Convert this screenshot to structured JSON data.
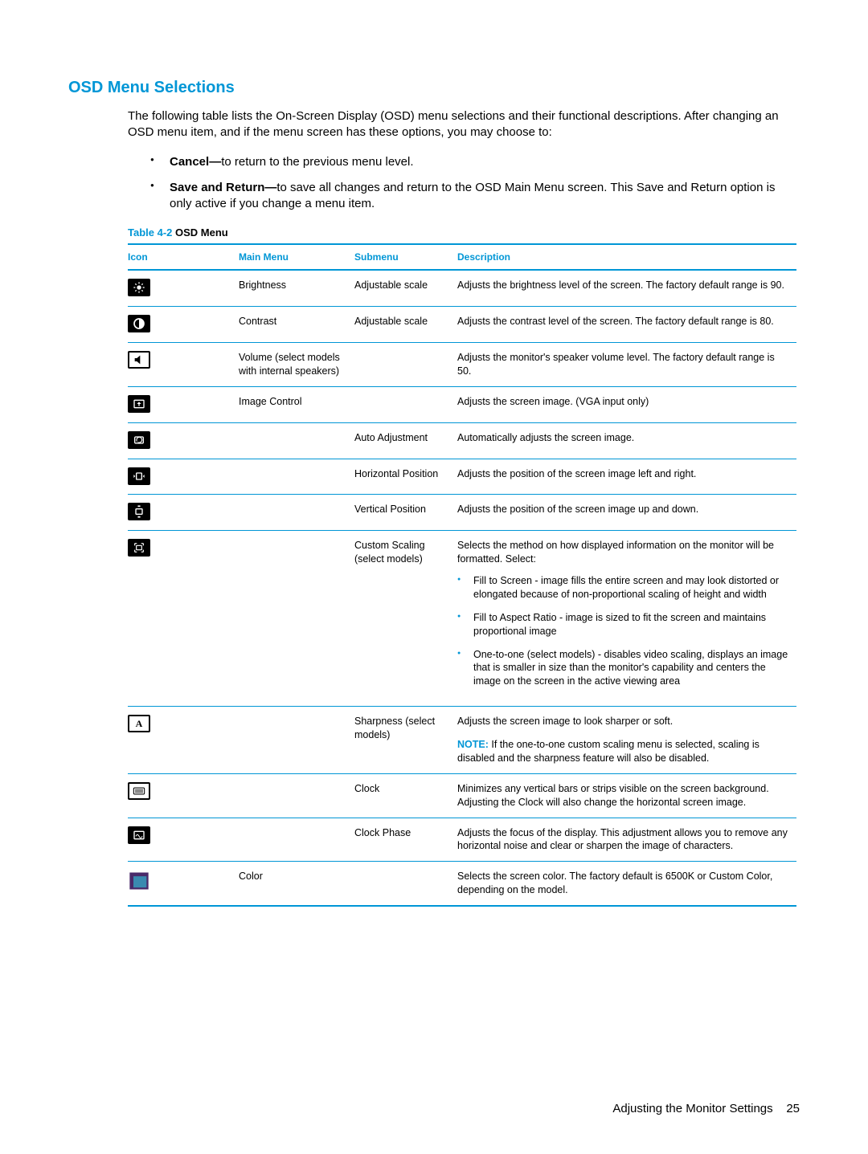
{
  "colors": {
    "accent": "#0096d6",
    "text": "#000000",
    "border": "#0096d6",
    "icon_bg": "#000000",
    "icon_fg": "#ffffff",
    "color_icon_a": "#4a2a6a",
    "color_icon_b": "#3a8ab0"
  },
  "heading": "OSD Menu Selections",
  "intro": "The following table lists the On-Screen Display (OSD) menu selections and their functional descriptions. After changing an OSD menu item, and if the menu screen has these options, you may choose to:",
  "bullets": [
    {
      "bold": "Cancel—",
      "text": "to return to the previous menu level."
    },
    {
      "bold": "Save and Return—",
      "text": "to save all changes and return to the OSD Main Menu screen. This Save and Return option is only active if you change a menu item."
    }
  ],
  "table_caption_prefix": "Table 4-2",
  "table_caption": "  OSD Menu",
  "columns": [
    "Icon",
    "Main Menu",
    "Submenu",
    "Description"
  ],
  "rows": [
    {
      "icon": "brightness",
      "main": "Brightness",
      "sub": "Adjustable scale",
      "desc": "Adjusts the brightness level of the screen. The factory default range is 90."
    },
    {
      "icon": "contrast",
      "main": "Contrast",
      "sub": "Adjustable scale",
      "desc": "Adjusts the contrast level of the screen. The factory default range is 80."
    },
    {
      "icon": "volume",
      "main": "Volume (select models with internal speakers)",
      "sub": "",
      "desc": "Adjusts the monitor's speaker volume level. The factory default range is 50."
    },
    {
      "icon": "image-control",
      "main": "Image Control",
      "sub": "",
      "desc": "Adjusts the screen image. (VGA input only)"
    },
    {
      "icon": "auto-adjust",
      "main": "",
      "sub": "Auto Adjustment",
      "desc": "Automatically adjusts the screen image."
    },
    {
      "icon": "h-position",
      "main": "",
      "sub": "Horizontal Position",
      "desc": "Adjusts the position of the screen image left and right."
    },
    {
      "icon": "v-position",
      "main": "",
      "sub": "Vertical Position",
      "desc": "Adjusts the position of the screen image up and down."
    },
    {
      "icon": "custom-scaling",
      "main": "",
      "sub": "Custom Scaling (select models)",
      "desc": "Selects the method on how displayed information on the monitor will be formatted. Select:",
      "sub_bullets": [
        "Fill to Screen - image fills the entire screen and may look distorted or elongated because of non-proportional scaling of height and width",
        "Fill to Aspect Ratio - image is sized to fit the screen and maintains proportional image",
        "One-to-one (select models) - disables video scaling, displays an image that is smaller in size than the monitor's capability and centers the image on the screen in the active viewing area"
      ]
    },
    {
      "icon": "sharpness",
      "main": "",
      "sub": "Sharpness (select models)",
      "desc": "Adjusts the screen image to look sharper or soft.",
      "note_label": "NOTE:",
      "note": "If the one-to-one custom scaling menu is selected, scaling is disabled and the sharpness feature will also be disabled."
    },
    {
      "icon": "clock",
      "main": "",
      "sub": "Clock",
      "desc": "Minimizes any vertical bars or strips visible on the screen background. Adjusting the Clock will also change the horizontal screen image."
    },
    {
      "icon": "clock-phase",
      "main": "",
      "sub": "Clock Phase",
      "desc": "Adjusts the focus of the display. This adjustment allows you to remove any horizontal noise and clear or sharpen the image of characters."
    },
    {
      "icon": "color",
      "main": "Color",
      "sub": "",
      "desc": "Selects the screen color. The factory default is 6500K or Custom Color, depending on the model."
    }
  ],
  "footer": {
    "text": "Adjusting the Monitor Settings",
    "page": "25"
  }
}
